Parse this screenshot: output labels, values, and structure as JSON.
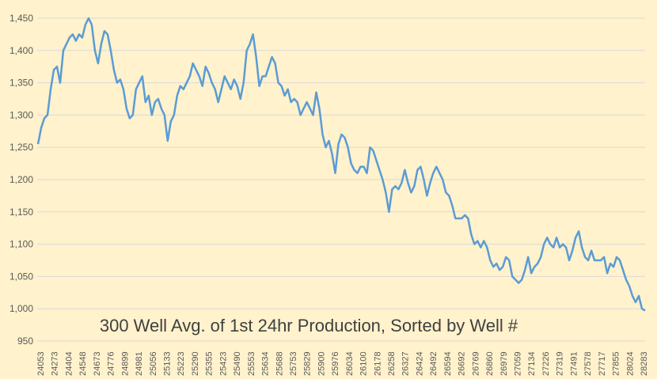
{
  "chart_data": {
    "type": "line",
    "title": "300 Well Avg. of 1st 24hr Production, Sorted by Well #",
    "xlabel": "",
    "ylabel": "",
    "ylim": [
      950,
      1450
    ],
    "grid": true,
    "legend": "none",
    "line_color": "#5b9bd5",
    "background": "#fff2cc",
    "y_ticks": [
      "950",
      "1,000",
      "1,050",
      "1,100",
      "1,150",
      "1,200",
      "1,250",
      "1,300",
      "1,350",
      "1,400",
      "1,450"
    ],
    "y_tick_values": [
      950,
      1000,
      1050,
      1100,
      1150,
      1200,
      1250,
      1300,
      1350,
      1400,
      1450
    ],
    "x_ticks": [
      "24053",
      "24273",
      "24404",
      "24548",
      "24673",
      "24776",
      "24899",
      "24981",
      "25056",
      "25133",
      "25223",
      "25290",
      "25355",
      "25423",
      "25490",
      "25553",
      "25634",
      "25688",
      "25753",
      "25829",
      "25900",
      "25976",
      "26034",
      "26100",
      "26178",
      "26258",
      "26327",
      "26424",
      "26492",
      "26594",
      "26692",
      "26769",
      "26860",
      "26979",
      "27059",
      "27134",
      "27226",
      "27319",
      "27491",
      "27578",
      "27717",
      "27855",
      "28024",
      "28283"
    ],
    "series": [
      {
        "name": "300 Well Avg.",
        "values": [
          1255,
          1280,
          1295,
          1300,
          1340,
          1370,
          1375,
          1350,
          1400,
          1410,
          1420,
          1425,
          1415,
          1425,
          1420,
          1440,
          1450,
          1440,
          1400,
          1380,
          1410,
          1430,
          1425,
          1400,
          1370,
          1350,
          1355,
          1340,
          1310,
          1295,
          1300,
          1340,
          1350,
          1360,
          1320,
          1330,
          1300,
          1320,
          1325,
          1310,
          1300,
          1260,
          1290,
          1300,
          1330,
          1345,
          1340,
          1350,
          1360,
          1380,
          1370,
          1360,
          1345,
          1375,
          1365,
          1350,
          1340,
          1320,
          1340,
          1360,
          1350,
          1340,
          1355,
          1345,
          1325,
          1350,
          1400,
          1410,
          1425,
          1390,
          1345,
          1360,
          1360,
          1375,
          1390,
          1380,
          1350,
          1345,
          1330,
          1340,
          1320,
          1325,
          1320,
          1300,
          1310,
          1320,
          1310,
          1300,
          1335,
          1310,
          1270,
          1250,
          1260,
          1240,
          1210,
          1255,
          1270,
          1265,
          1250,
          1225,
          1215,
          1210,
          1220,
          1220,
          1210,
          1250,
          1245,
          1230,
          1215,
          1200,
          1180,
          1150,
          1185,
          1190,
          1185,
          1195,
          1215,
          1195,
          1180,
          1190,
          1215,
          1220,
          1200,
          1175,
          1195,
          1210,
          1220,
          1210,
          1200,
          1180,
          1175,
          1160,
          1140,
          1140,
          1140,
          1145,
          1140,
          1115,
          1100,
          1105,
          1095,
          1105,
          1095,
          1075,
          1065,
          1070,
          1060,
          1065,
          1080,
          1075,
          1050,
          1045,
          1040,
          1045,
          1060,
          1080,
          1055,
          1065,
          1070,
          1080,
          1100,
          1110,
          1100,
          1095,
          1110,
          1095,
          1100,
          1095,
          1075,
          1090,
          1110,
          1120,
          1095,
          1080,
          1075,
          1090,
          1075,
          1075,
          1075,
          1080,
          1055,
          1070,
          1065,
          1080,
          1075,
          1060,
          1045,
          1035,
          1020,
          1010,
          1020,
          1000,
          997
        ]
      }
    ]
  }
}
